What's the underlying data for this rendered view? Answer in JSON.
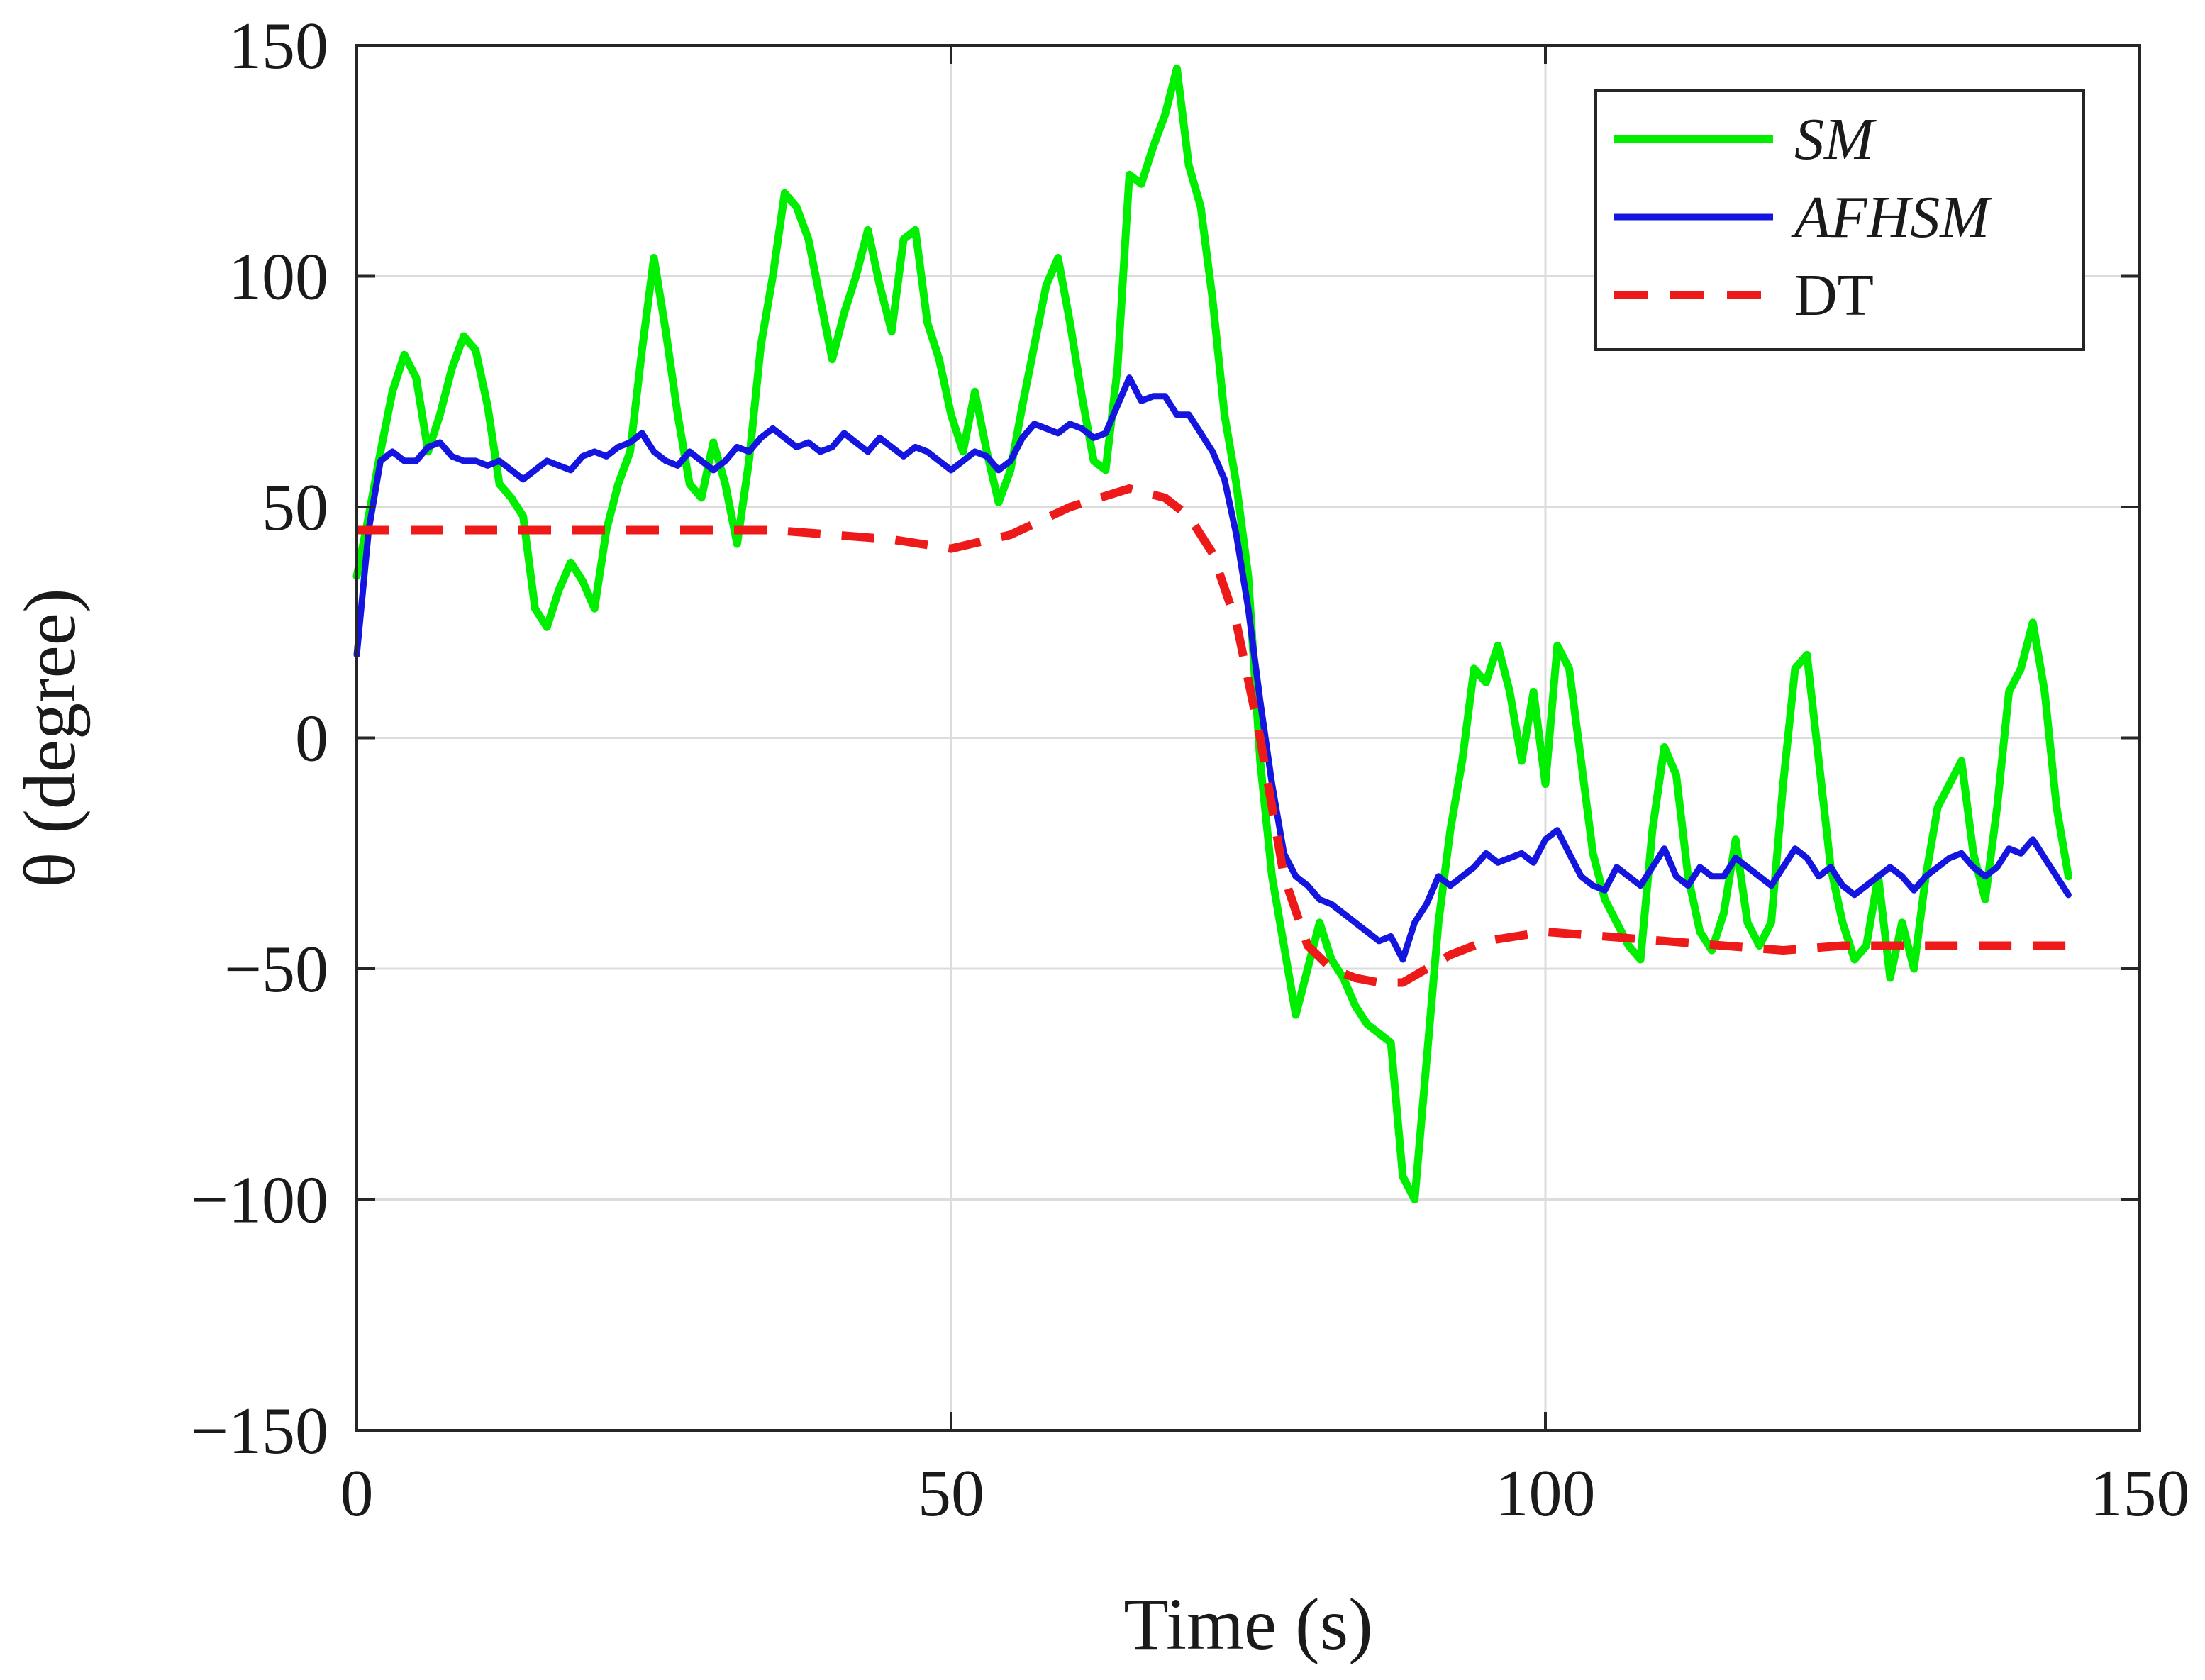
{
  "chart_data": {
    "type": "line",
    "title": "",
    "xlabel": "Time (s)",
    "ylabel": "θ (degree)",
    "xlim": [
      0,
      150
    ],
    "ylim": [
      -150,
      150
    ],
    "xticks": [
      0,
      50,
      100,
      150
    ],
    "yticks": [
      -150,
      -100,
      -50,
      0,
      50,
      100,
      150
    ],
    "xtick_labels": [
      "0",
      "50",
      "100",
      "150"
    ],
    "ytick_labels": [
      "−150",
      "−100",
      "−50",
      "0",
      "50",
      "100",
      "150"
    ],
    "grid": true,
    "legend_position": "top-right",
    "series": [
      {
        "name": "SM",
        "color": "#00ee00",
        "style": "solid",
        "x": [
          0,
          1,
          2,
          3,
          4,
          5,
          6,
          7,
          8,
          9,
          10,
          11,
          12,
          13,
          14,
          15,
          16,
          17,
          18,
          19,
          20,
          21,
          22,
          23,
          24,
          25,
          26,
          27,
          28,
          29,
          30,
          31,
          32,
          33,
          34,
          35,
          36,
          37,
          38,
          39,
          40,
          41,
          42,
          43,
          44,
          45,
          46,
          47,
          48,
          49,
          50,
          51,
          52,
          53,
          54,
          55,
          56,
          57,
          58,
          59,
          60,
          61,
          62,
          63,
          64,
          65,
          66,
          67,
          68,
          69,
          70,
          71,
          72,
          73,
          74,
          75,
          76,
          77,
          78,
          79,
          80,
          81,
          82,
          83,
          84,
          85,
          86,
          87,
          88,
          89,
          90,
          91,
          92,
          93,
          94,
          95,
          96,
          97,
          98,
          99,
          100,
          101,
          102,
          103,
          104,
          105,
          106,
          107,
          108,
          109,
          110,
          111,
          112,
          113,
          114,
          115,
          116,
          117,
          118,
          119,
          120,
          121,
          122,
          123,
          124,
          125,
          126,
          127,
          128,
          129,
          130,
          131,
          132,
          133,
          134,
          135,
          136,
          137,
          138,
          139,
          140,
          141,
          142,
          143,
          144
        ],
        "y": [
          35,
          48,
          62,
          75,
          83,
          78,
          62,
          70,
          80,
          87,
          84,
          72,
          55,
          52,
          48,
          28,
          24,
          32,
          38,
          34,
          28,
          45,
          55,
          62,
          84,
          104,
          88,
          70,
          55,
          52,
          64,
          55,
          42,
          60,
          85,
          100,
          118,
          115,
          108,
          95,
          82,
          92,
          100,
          110,
          98,
          88,
          108,
          110,
          90,
          82,
          70,
          62,
          75,
          62,
          51,
          58,
          72,
          85,
          98,
          104,
          90,
          74,
          60,
          58,
          80,
          122,
          120,
          128,
          135,
          145,
          124,
          115,
          95,
          70,
          55,
          35,
          -5,
          -30,
          -45,
          -60,
          -50,
          -40,
          -48,
          -52,
          -58,
          -62,
          -64,
          -66,
          -95,
          -100,
          -70,
          -40,
          -20,
          -5,
          15,
          12,
          20,
          10,
          -5,
          10,
          -10,
          20,
          15,
          -5,
          -25,
          -35,
          -40,
          -45,
          -48,
          -20,
          -2,
          -8,
          -30,
          -42,
          -46,
          -38,
          -22,
          -40,
          -45,
          -40,
          -10,
          15,
          18,
          -5,
          -28,
          -40,
          -48,
          -45,
          -30,
          -52,
          -40,
          -50,
          -30,
          -15,
          -10,
          -5,
          -25,
          -35,
          -15,
          10,
          15,
          25,
          10,
          -15,
          -30
        ]
      },
      {
        "name": "AFHSM",
        "color": "#1515e0",
        "style": "solid",
        "x": [
          0,
          1,
          2,
          3,
          4,
          5,
          6,
          7,
          8,
          9,
          10,
          11,
          12,
          13,
          14,
          15,
          16,
          17,
          18,
          19,
          20,
          21,
          22,
          23,
          24,
          25,
          26,
          27,
          28,
          29,
          30,
          31,
          32,
          33,
          34,
          35,
          36,
          37,
          38,
          39,
          40,
          41,
          42,
          43,
          44,
          45,
          46,
          47,
          48,
          49,
          50,
          51,
          52,
          53,
          54,
          55,
          56,
          57,
          58,
          59,
          60,
          61,
          62,
          63,
          64,
          65,
          66,
          67,
          68,
          69,
          70,
          71,
          72,
          73,
          74,
          75,
          76,
          77,
          78,
          79,
          80,
          81,
          82,
          83,
          84,
          85,
          86,
          87,
          88,
          89,
          90,
          91,
          92,
          93,
          94,
          95,
          96,
          97,
          98,
          99,
          100,
          101,
          102,
          103,
          104,
          105,
          106,
          107,
          108,
          109,
          110,
          111,
          112,
          113,
          114,
          115,
          116,
          117,
          118,
          119,
          120,
          121,
          122,
          123,
          124,
          125,
          126,
          127,
          128,
          129,
          130,
          131,
          132,
          133,
          134,
          135,
          136,
          137,
          138,
          139,
          140,
          141,
          142,
          143,
          144
        ],
        "y": [
          18,
          45,
          60,
          62,
          60,
          60,
          63,
          64,
          61,
          60,
          60,
          59,
          60,
          58,
          56,
          58,
          60,
          59,
          58,
          61,
          62,
          61,
          63,
          64,
          66,
          62,
          60,
          59,
          62,
          60,
          58,
          60,
          63,
          62,
          65,
          67,
          65,
          63,
          64,
          62,
          63,
          66,
          64,
          62,
          65,
          63,
          61,
          63,
          62,
          60,
          58,
          60,
          62,
          61,
          58,
          60,
          65,
          68,
          67,
          66,
          68,
          67,
          65,
          66,
          72,
          78,
          73,
          74,
          74,
          70,
          70,
          66,
          62,
          56,
          44,
          28,
          8,
          -10,
          -25,
          -30,
          -32,
          -35,
          -36,
          -38,
          -40,
          -42,
          -44,
          -43,
          -48,
          -40,
          -36,
          -30,
          -32,
          -30,
          -28,
          -25,
          -27,
          -26,
          -25,
          -27,
          -22,
          -20,
          -25,
          -30,
          -32,
          -33,
          -28,
          -30,
          -32,
          -28,
          -24,
          -30,
          -32,
          -28,
          -30,
          -30,
          -26,
          -28,
          -30,
          -32,
          -28,
          -24,
          -26,
          -30,
          -28,
          -32,
          -34,
          -32,
          -30,
          -28,
          -30,
          -33,
          -30,
          -28,
          -26,
          -25,
          -28,
          -30,
          -28,
          -24,
          -25,
          -22,
          -26,
          -30,
          -34
        ]
      },
      {
        "name": "DT",
        "color": "#ee1a1a",
        "style": "dashed",
        "x": [
          0,
          5,
          10,
          15,
          20,
          25,
          30,
          35,
          40,
          45,
          50,
          55,
          60,
          65,
          68,
          70,
          72,
          74,
          76,
          78,
          80,
          82,
          84,
          86,
          88,
          90,
          92,
          95,
          100,
          105,
          110,
          115,
          120,
          125,
          130,
          135,
          140,
          144
        ],
        "y": [
          45,
          45,
          45,
          45,
          45,
          45,
          45,
          45,
          44,
          43,
          41,
          44,
          50,
          54,
          52,
          48,
          40,
          25,
          0,
          -30,
          -45,
          -50,
          -52,
          -53,
          -53,
          -50,
          -47,
          -44,
          -42,
          -43,
          -44,
          -45,
          -46,
          -45,
          -45,
          -45,
          -45,
          -45
        ]
      }
    ]
  }
}
